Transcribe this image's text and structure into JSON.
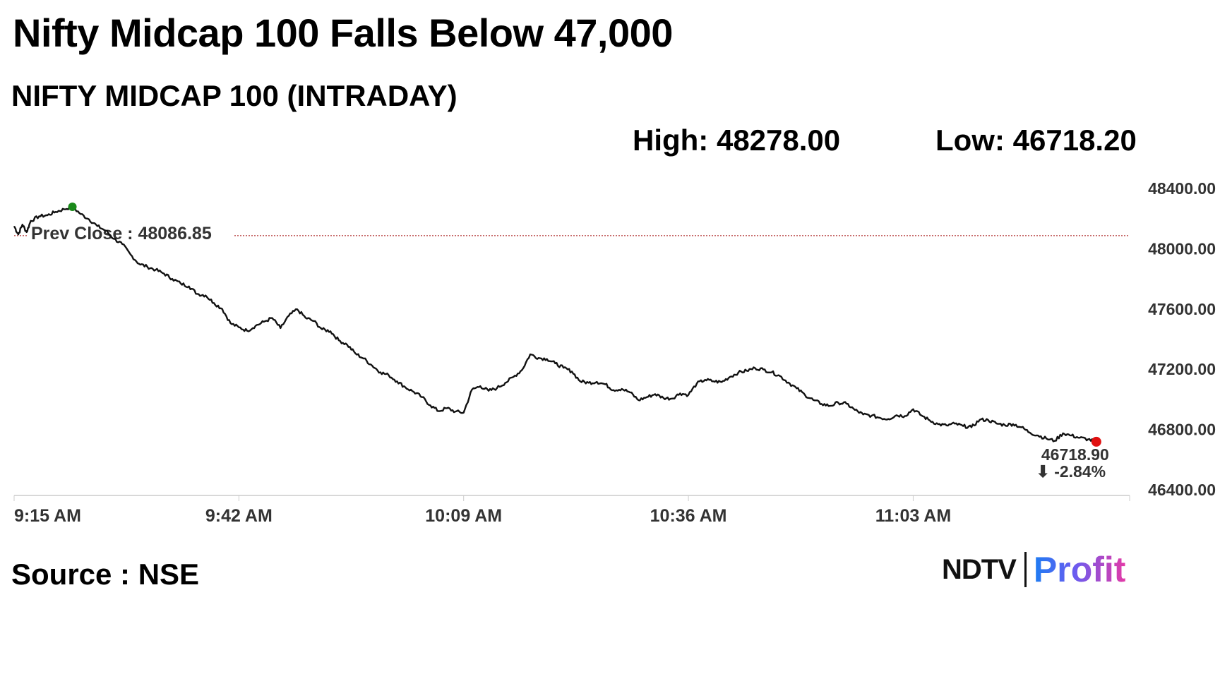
{
  "headline": "Nifty Midcap 100 Falls Below 47,000",
  "subtitle": "NIFTY MIDCAP 100 (INTRADAY)",
  "high_label": "High: 48278.00",
  "low_label": "Low: 46718.20",
  "source": "Source : NSE",
  "logo": {
    "part1": "NDTV",
    "part2": "Profit"
  },
  "colors": {
    "line": "#111111",
    "high_marker": "#1a8a1a",
    "low_marker": "#e01010",
    "prev_close_line": "#b03030",
    "change_negative": "#e01010"
  },
  "chart_data": {
    "type": "line",
    "title": "NIFTY MIDCAP 100 (INTRADAY)",
    "x_tick_labels": [
      "9:15 AM",
      "9:42 AM",
      "10:09 AM",
      "10:36 AM",
      "11:03 AM"
    ],
    "y_tick_labels": [
      "48400.00",
      "48000.00",
      "47600.00",
      "47200.00",
      "46800.00",
      "46400.00"
    ],
    "ylim": [
      46400,
      48400
    ],
    "x_range_minutes": [
      0,
      134
    ],
    "grid": false,
    "prev_close": 48086.85,
    "prev_close_label": "Prev Close : 48086.85",
    "high": 48278.0,
    "low": 46718.2,
    "last_value": 46718.9,
    "last_value_label": "46718.90",
    "change_label": "⬇ -2.84%",
    "series": [
      {
        "points": [
          [
            0,
            48150
          ],
          [
            0.5,
            48095
          ],
          [
            1,
            48160
          ],
          [
            1.5,
            48110
          ],
          [
            2,
            48185
          ],
          [
            3,
            48215
          ],
          [
            4,
            48222
          ],
          [
            5,
            48245
          ],
          [
            6,
            48262
          ],
          [
            7,
            48278
          ],
          [
            8,
            48230
          ],
          [
            9,
            48195
          ],
          [
            10,
            48150
          ],
          [
            11,
            48120
          ],
          [
            12,
            48065
          ],
          [
            13,
            48030
          ],
          [
            14,
            47960
          ],
          [
            15,
            47900
          ],
          [
            16,
            47880
          ],
          [
            17,
            47860
          ],
          [
            18,
            47835
          ],
          [
            19,
            47800
          ],
          [
            20,
            47770
          ],
          [
            21,
            47750
          ],
          [
            22,
            47700
          ],
          [
            23,
            47690
          ],
          [
            24,
            47640
          ],
          [
            25,
            47600
          ],
          [
            26,
            47505
          ],
          [
            27,
            47478
          ],
          [
            28,
            47455
          ],
          [
            29,
            47488
          ],
          [
            30,
            47515
          ],
          [
            31,
            47540
          ],
          [
            32,
            47473
          ],
          [
            33,
            47555
          ],
          [
            34,
            47598
          ],
          [
            35,
            47542
          ],
          [
            36,
            47520
          ],
          [
            37,
            47465
          ],
          [
            38,
            47452
          ],
          [
            39,
            47392
          ],
          [
            40,
            47363
          ],
          [
            41,
            47305
          ],
          [
            42,
            47271
          ],
          [
            43,
            47225
          ],
          [
            44,
            47180
          ],
          [
            45,
            47160
          ],
          [
            46,
            47120
          ],
          [
            47,
            47080
          ],
          [
            48,
            47050
          ],
          [
            49,
            47015
          ],
          [
            50,
            46960
          ],
          [
            51,
            46922
          ],
          [
            52,
            46942
          ],
          [
            53,
            46919
          ],
          [
            54,
            46912
          ],
          [
            55,
            47065
          ],
          [
            56,
            47088
          ],
          [
            57,
            47057
          ],
          [
            58,
            47075
          ],
          [
            59,
            47110
          ],
          [
            60,
            47150
          ],
          [
            61,
            47195
          ],
          [
            62,
            47299
          ],
          [
            63,
            47275
          ],
          [
            64,
            47268
          ],
          [
            65,
            47239
          ],
          [
            66,
            47210
          ],
          [
            67,
            47185
          ],
          [
            68,
            47120
          ],
          [
            69,
            47110
          ],
          [
            70,
            47116
          ],
          [
            71,
            47100
          ],
          [
            72,
            47062
          ],
          [
            73,
            47070
          ],
          [
            74,
            47046
          ],
          [
            75,
            46995
          ],
          [
            76,
            47015
          ],
          [
            77,
            47035
          ],
          [
            78,
            47010
          ],
          [
            79,
            47005
          ],
          [
            80,
            47040
          ],
          [
            81,
            47030
          ],
          [
            82,
            47105
          ],
          [
            83,
            47130
          ],
          [
            84,
            47120
          ],
          [
            85,
            47115
          ],
          [
            86,
            47150
          ],
          [
            87,
            47178
          ],
          [
            88,
            47190
          ],
          [
            89,
            47208
          ],
          [
            90,
            47198
          ],
          [
            91,
            47180
          ],
          [
            92,
            47155
          ],
          [
            93,
            47112
          ],
          [
            94,
            47073
          ],
          [
            95,
            47030
          ],
          [
            96,
            46996
          ],
          [
            97,
            46970
          ],
          [
            98,
            46957
          ],
          [
            99,
            46978
          ],
          [
            100,
            46971
          ],
          [
            101,
            46930
          ],
          [
            102,
            46900
          ],
          [
            103,
            46892
          ],
          [
            104,
            46878
          ],
          [
            105,
            46870
          ],
          [
            106,
            46895
          ],
          [
            107,
            46890
          ],
          [
            108,
            46935
          ],
          [
            109,
            46893
          ],
          [
            110,
            46860
          ],
          [
            111,
            46835
          ],
          [
            112,
            46827
          ],
          [
            113,
            46839
          ],
          [
            114,
            46823
          ],
          [
            115,
            46815
          ],
          [
            116,
            46865
          ],
          [
            117,
            46863
          ],
          [
            118,
            46840
          ],
          [
            119,
            46830
          ],
          [
            120,
            46836
          ],
          [
            121,
            46815
          ],
          [
            122,
            46780
          ],
          [
            123,
            46760
          ],
          [
            124,
            46740
          ],
          [
            125,
            46725
          ],
          [
            126,
            46775
          ],
          [
            127,
            46760
          ],
          [
            128,
            46745
          ],
          [
            129,
            46735
          ],
          [
            130,
            46718.9
          ]
        ]
      }
    ]
  }
}
